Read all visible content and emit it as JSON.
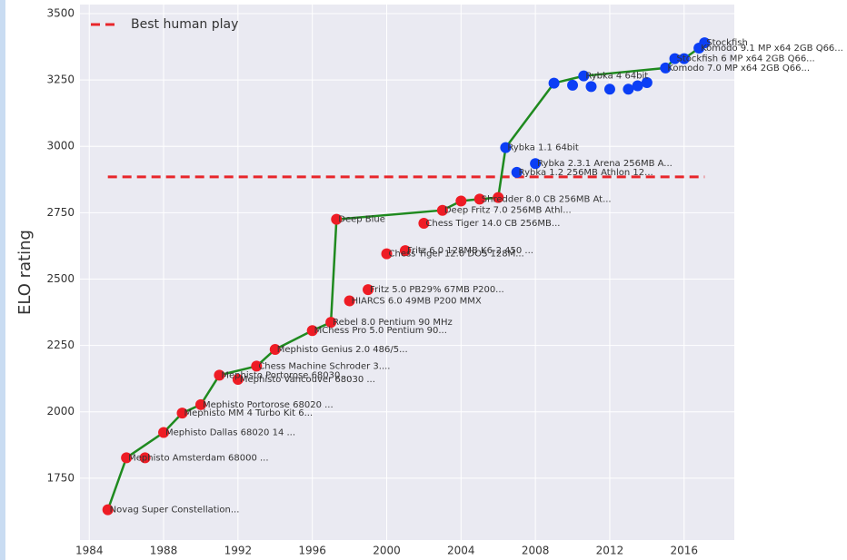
{
  "chart_data": {
    "type": "scatter",
    "y_label": "ELO rating",
    "legend": {
      "label": "Best human play",
      "corner": "top-left"
    },
    "reference_line": {
      "y": 2885,
      "x": [
        1985,
        2017.1
      ],
      "color": "#e8262b"
    },
    "xlim": [
      1983.5,
      2018.7
    ],
    "ylim": [
      1517,
      3534
    ],
    "xticks": [
      1984,
      1988,
      1992,
      1996,
      2000,
      2004,
      2008,
      2012,
      2016
    ],
    "yticks": [
      1750,
      2000,
      2250,
      2500,
      2750,
      3000,
      3250,
      3500
    ],
    "grid": true,
    "points": {
      "x": [
        1985,
        1986,
        1987,
        1988,
        1989,
        1990,
        1991,
        1992,
        1993,
        1994,
        1996,
        1997,
        1997.3,
        1998,
        1999,
        2000,
        2001,
        2002,
        2003,
        2004,
        2005,
        2006,
        2006.4,
        2007,
        2008,
        2009,
        2010,
        2010.6,
        2011,
        2012,
        2013,
        2013.5,
        2014,
        2015,
        2015.5,
        2016,
        2016.8,
        2017.1
      ],
      "y": [
        1631,
        1827,
        1827,
        1922,
        1995,
        2027,
        2138,
        2122,
        2172,
        2235,
        2306,
        2337,
        2725,
        2418,
        2460,
        2595,
        2607,
        2710,
        2759,
        2794,
        2801,
        2807,
        2995,
        2902,
        2935,
        3238,
        3230,
        3265,
        3225,
        3215,
        3215,
        3228,
        3240,
        3295,
        3330,
        3330,
        3370,
        3390
      ],
      "labels": [
        "Novag Super Constellation...",
        "Mephisto Amsterdam 68000 ...",
        null,
        "Mephisto Dallas 68020 14 ...",
        "Mephisto MM 4 Turbo Kit 6...",
        "Mephisto Portorose 68020 ...",
        "Mephisto Portorose 68030 ...",
        "Mephisto Vancouver 68030 ...",
        "Chess Machine Schroder 3....",
        "Mephisto Genius 2.0 486/5...",
        "MChess Pro 5.0 Pentium 90...",
        "Rebel 8.0 Pentium 90 MHz",
        "Deep Blue",
        "HIARCS 6.0 49MB P200 MMX",
        "Fritz 5.0 PB29% 67MB P200...",
        "Chess Tiger 12.0 DOS 128M...",
        "Fritz 6.0 128MB K6-2 450 ...",
        "Chess Tiger 14.0 CB 256MB...",
        "Deep Fritz 7.0 256MB Athl...",
        null,
        "Shredder 8.0 CB 256MB At...",
        null,
        "Rybka 1.1 64bit",
        "Rybka 1.2 256MB Athlon 12...",
        "Rybka 2.3.1 Arena 256MB A...",
        null,
        null,
        "Rybka 4 64bit",
        null,
        null,
        null,
        null,
        null,
        "Komodo 7.0 MP x64 2GB Q66...",
        "Stockfish 6 MP x64 2GB Q66...",
        null,
        "Komodo 9.1 MP x64 2GB Q66...",
        "Stockfish"
      ],
      "colors": [
        "#ee1c25",
        "#ee1c25",
        "#ee1c25",
        "#ee1c25",
        "#ee1c25",
        "#ee1c25",
        "#ee1c25",
        "#ee1c25",
        "#ee1c25",
        "#ee1c25",
        "#ee1c25",
        "#ee1c25",
        "#ee1c25",
        "#ee1c25",
        "#ee1c25",
        "#ee1c25",
        "#ee1c25",
        "#ee1c25",
        "#ee1c25",
        "#ee1c25",
        "#ee1c25",
        "#ee1c25",
        "#0b3ef5",
        "#0b3ef5",
        "#0b3ef5",
        "#0b3ef5",
        "#0b3ef5",
        "#0b3ef5",
        "#0b3ef5",
        "#0b3ef5",
        "#0b3ef5",
        "#0b3ef5",
        "#0b3ef5",
        "#0b3ef5",
        "#0b3ef5",
        "#0b3ef5",
        "#0b3ef5",
        "#0b3ef5"
      ]
    },
    "frontier": {
      "color": "#1f8a1f",
      "x": [
        1985,
        1986,
        1988,
        1989,
        1990,
        1991,
        1993,
        1994,
        1996,
        1997,
        1997.3,
        2003,
        2004,
        2005,
        2006,
        2006.4,
        2009,
        2010.6,
        2015,
        2015.5,
        2016,
        2016.8,
        2017.1
      ],
      "y": [
        1631,
        1827,
        1922,
        1995,
        2027,
        2138,
        2172,
        2235,
        2306,
        2337,
        2725,
        2759,
        2794,
        2801,
        2807,
        2995,
        3238,
        3265,
        3295,
        3330,
        3330,
        3370,
        3390
      ]
    }
  }
}
